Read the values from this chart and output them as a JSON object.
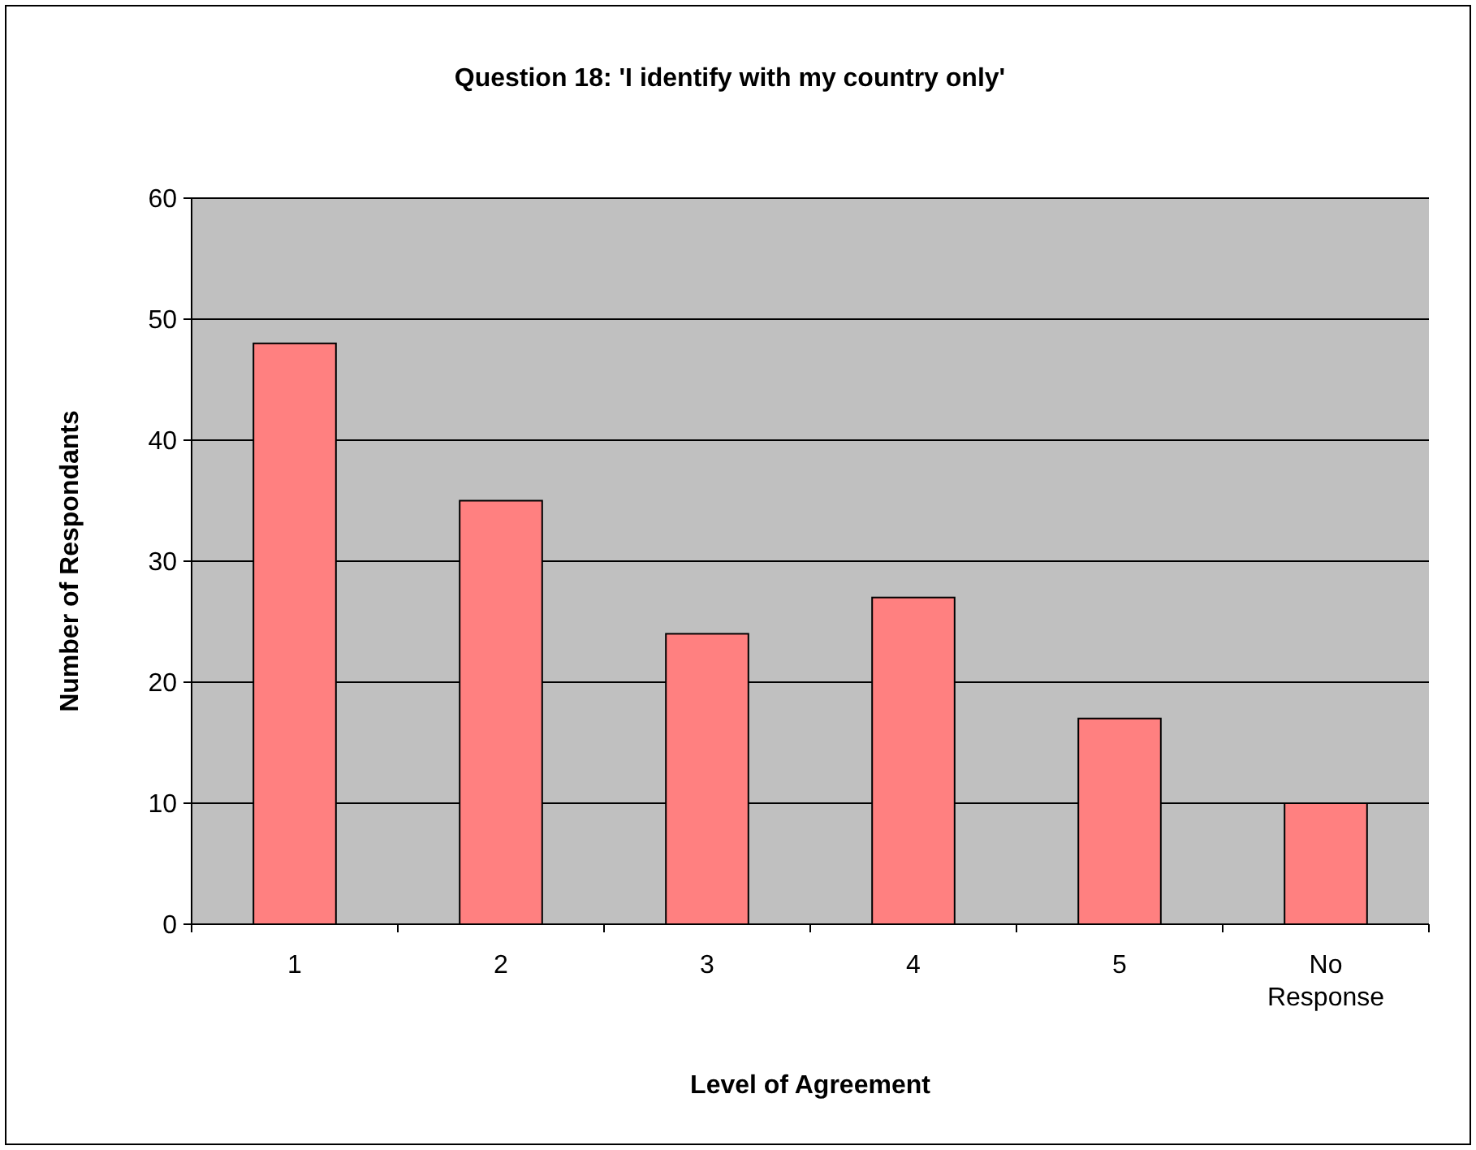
{
  "chart_data": {
    "type": "bar",
    "title": "Question 18: 'I identify with my country only'",
    "xlabel": "Level of Agreement",
    "ylabel": "Number of Respondants",
    "categories": [
      "1",
      "2",
      "3",
      "4",
      "5",
      "No Response"
    ],
    "values": [
      48,
      35,
      24,
      27,
      17,
      10
    ],
    "color": "#ff8080",
    "ylim": [
      0,
      60
    ],
    "yticks": [
      0,
      10,
      20,
      30,
      40,
      50,
      60
    ],
    "grid": "y"
  }
}
